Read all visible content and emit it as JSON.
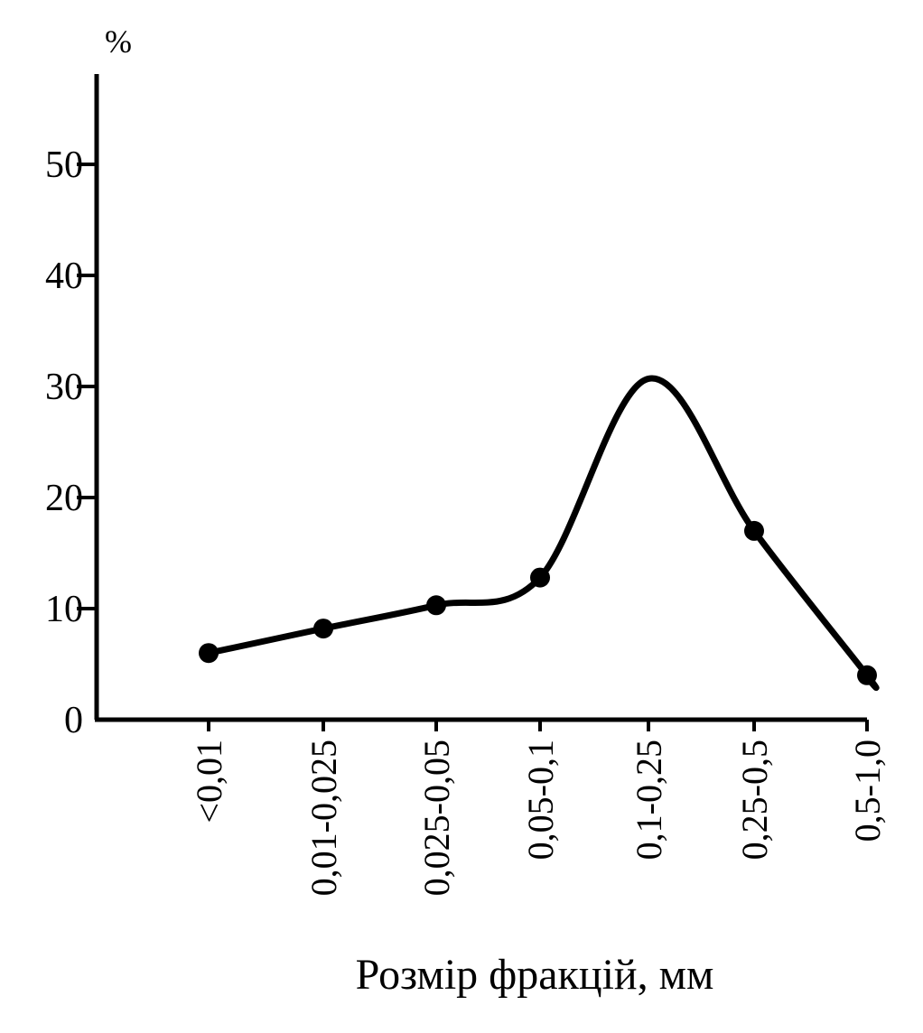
{
  "chart_data": {
    "type": "line",
    "title": "",
    "xlabel": "Розмір фракцій, мм",
    "ylabel": "%",
    "categories": [
      "<0,01",
      "0,01-0,025",
      "0,025-0,05",
      "0,05-0,1",
      "0,1-0,25",
      "0,25-0,5",
      "0,5-1,0"
    ],
    "series": [
      {
        "name": "",
        "values": [
          6,
          8.2,
          10.3,
          12.8,
          30.7,
          17,
          4
        ]
      }
    ],
    "marked_points": [
      true,
      true,
      true,
      true,
      false,
      true,
      true
    ],
    "ylim": [
      0,
      58
    ],
    "yticks": [
      0,
      10,
      20,
      30,
      40,
      50
    ],
    "ytick_labels": [
      "0",
      "10",
      "20",
      "30",
      "40",
      "50"
    ],
    "grid": false,
    "legend": "none",
    "colors": {
      "line": "#000000",
      "marker": "#000000",
      "axis": "#000000",
      "background": "#ffffff"
    }
  }
}
